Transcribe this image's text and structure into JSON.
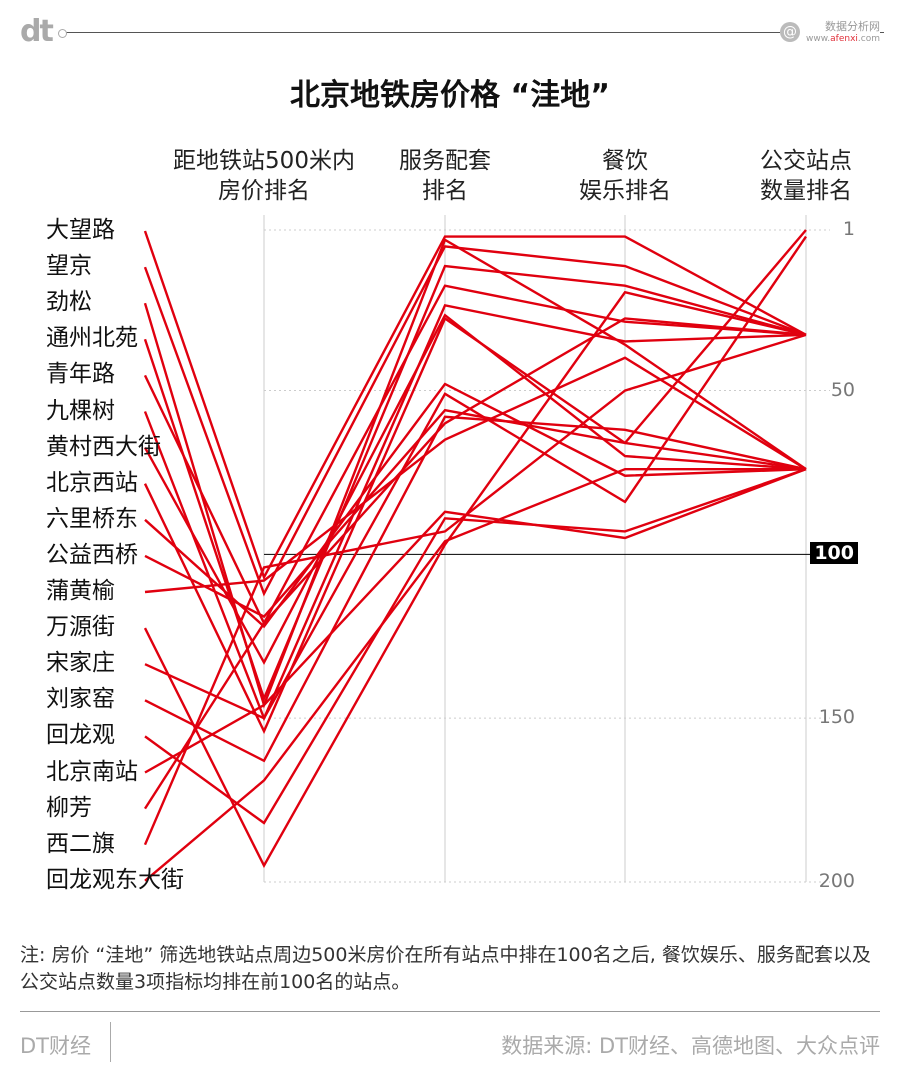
{
  "header": {
    "logo": "dt",
    "watermark_name": "数据分析网",
    "watermark_url_prefix": "www.",
    "watermark_url_brand": "afenxi",
    "watermark_url_suffix": ".com",
    "watermark_icon": "@"
  },
  "chart_data": {
    "type": "parallel-coordinates",
    "title": "北京地铁房价格 “洼地”",
    "axes": [
      "距地铁站500米内\n房价排名",
      "服务配套\n排名",
      "餐饮\n娱乐排名",
      "公交站点\n数量排名"
    ],
    "axis_headers": [
      [
        "距地铁站500米内",
        "房价排名"
      ],
      [
        "服务配套",
        "排名"
      ],
      [
        "餐饮",
        "娱乐排名"
      ],
      [
        "公交站点",
        "数量排名"
      ]
    ],
    "ylim": [
      1,
      200
    ],
    "inverted": true,
    "ticks": [
      "1",
      "50",
      "100",
      "150",
      "200"
    ],
    "tick_values": [
      1,
      50,
      100,
      150,
      200
    ],
    "highlight_value": 100,
    "color": "#e0000f",
    "series": [
      {
        "name": "大望路",
        "values": [
          107,
          3,
          3,
          33
        ]
      },
      {
        "name": "望京",
        "values": [
          112,
          6,
          12,
          33
        ]
      },
      {
        "name": "劲松",
        "values": [
          146,
          4,
          36,
          74
        ]
      },
      {
        "name": "通州北苑",
        "values": [
          144,
          12,
          18,
          33
        ]
      },
      {
        "name": "青年路",
        "values": [
          121,
          18,
          29,
          33
        ]
      },
      {
        "name": "九棵树",
        "values": [
          150,
          24,
          35,
          33
        ]
      },
      {
        "name": "黄村西大街",
        "values": [
          133,
          27,
          70,
          74
        ]
      },
      {
        "name": "北京西站",
        "values": [
          154,
          28,
          66,
          74
        ]
      },
      {
        "name": "六里桥东",
        "values": [
          122,
          48,
          76,
          74
        ]
      },
      {
        "name": "公益西桥",
        "values": [
          119,
          56,
          66,
          1
        ]
      },
      {
        "name": "蒲黄榆",
        "values": [
          108,
          65,
          40,
          74
        ]
      },
      {
        "name": "万源街",
        "values": [
          195,
          97,
          20,
          33
        ]
      },
      {
        "name": "宋家庄",
        "values": [
          150,
          51,
          84,
          3
        ]
      },
      {
        "name": "刘家窑",
        "values": [
          163,
          58,
          62,
          74
        ]
      },
      {
        "name": "回龙观",
        "values": [
          182,
          89,
          93,
          74
        ]
      },
      {
        "name": "北京南站",
        "values": [
          146,
          87,
          95,
          74
        ]
      },
      {
        "name": "柳芳",
        "values": [
          121,
          60,
          28,
          33
        ]
      },
      {
        "name": "西二旗",
        "values": [
          104,
          93,
          50,
          33
        ]
      },
      {
        "name": "回龙观东大街",
        "values": [
          169,
          96,
          74,
          74
        ]
      }
    ]
  },
  "note": "注: 房价 “洼地” 筛选地铁站点周边500米房价在所有站点中排在100名之后, 餐饮娱乐、服务配套以及公交站点数量3项指标均排在前100名的站点。",
  "footer": {
    "brand": "DT财经",
    "source": "数据来源: DT财经、高德地图、大众点评"
  }
}
